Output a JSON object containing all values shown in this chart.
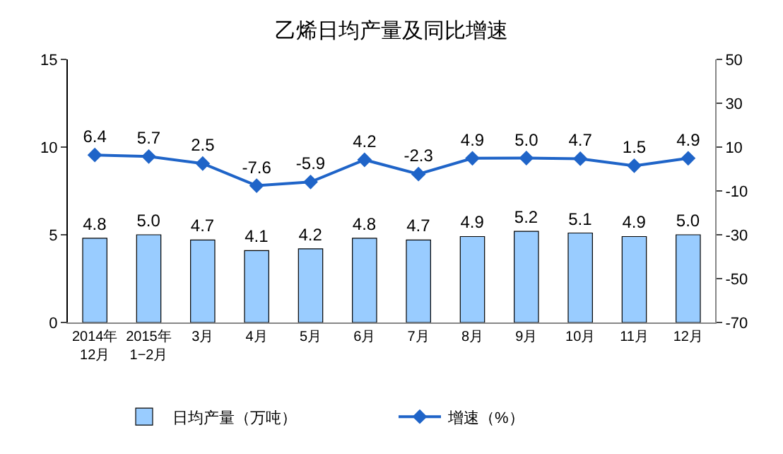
{
  "chart_data": {
    "type": "bar",
    "title": "乙烯日均产量及同比增速",
    "categories": [
      "2014年\n12月",
      "2015年\n1−2月",
      "3月",
      "4月",
      "5月",
      "6月",
      "7月",
      "8月",
      "9月",
      "10月",
      "11月",
      "12月"
    ],
    "series": [
      {
        "name": "日均产量（万吨）",
        "color": "#99ccff",
        "values": [
          4.8,
          5.0,
          4.7,
          4.1,
          4.2,
          4.8,
          4.7,
          4.9,
          5.2,
          5.1,
          4.9,
          5.0
        ],
        "value_labels": [
          "4.8",
          "5.0",
          "4.7",
          "4.1",
          "4.2",
          "4.8",
          "4.7",
          "4.9",
          "5.2",
          "5.1",
          "4.9",
          "5.0"
        ]
      },
      {
        "name": "增速（%）",
        "type": "line",
        "axis": "y2",
        "color": "#1f64c8",
        "marker": "diamond",
        "values": [
          6.4,
          5.7,
          2.5,
          -7.6,
          -5.9,
          4.2,
          -2.3,
          4.9,
          5.0,
          4.7,
          1.5,
          4.9
        ],
        "value_labels": [
          "6.4",
          "5.7",
          "2.5",
          "-7.6",
          "-5.9",
          "4.2",
          "-2.3",
          "4.9",
          "5.0",
          "4.7",
          "1.5",
          "4.9"
        ]
      }
    ],
    "ylim": [
      0,
      15
    ],
    "yticks": [
      0,
      5,
      10,
      15
    ],
    "y2lim": [
      -70,
      50
    ],
    "y2ticks": [
      -70,
      -50,
      -30,
      -10,
      10,
      30,
      50
    ],
    "grid": false,
    "legend": "bottom"
  }
}
